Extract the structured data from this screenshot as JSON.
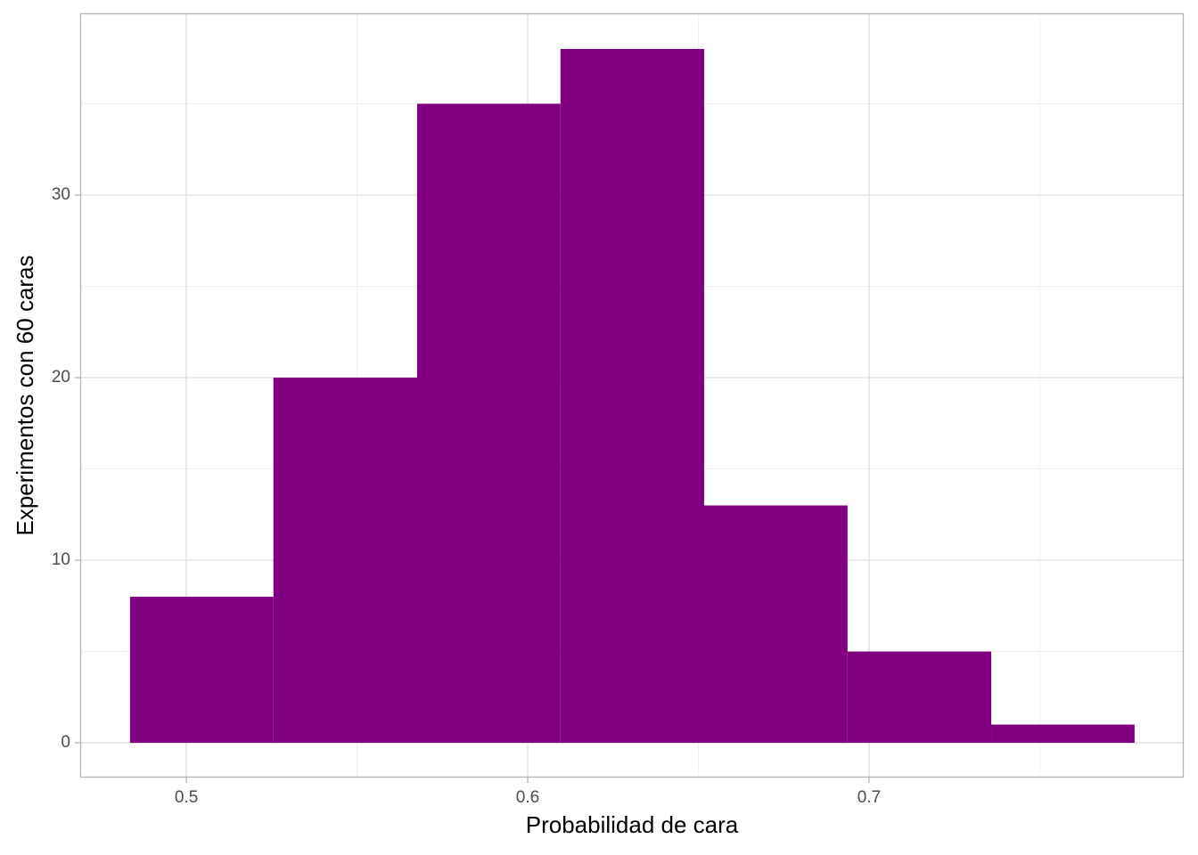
{
  "chart_data": {
    "type": "histogram",
    "x_label": "Probabilidad de cara",
    "y_label": "Experimentos con 60 caras",
    "bins": [
      0.4835,
      0.5255,
      0.5676,
      0.6096,
      0.6517,
      0.6937,
      0.7358,
      0.7778
    ],
    "values": [
      8,
      20,
      35,
      38,
      13,
      5,
      1
    ],
    "color": "#800080",
    "xlim": [
      0.4689,
      0.7922
    ],
    "ylim": [
      -1.9,
      39.95
    ],
    "xticks": [
      0.5,
      0.6,
      0.7
    ],
    "yticks": [
      0,
      10,
      20,
      30
    ],
    "x_minor_grid": [
      0.55,
      0.65,
      0.75
    ],
    "y_minor_grid": [
      5,
      15,
      25,
      35
    ],
    "grid": true
  }
}
